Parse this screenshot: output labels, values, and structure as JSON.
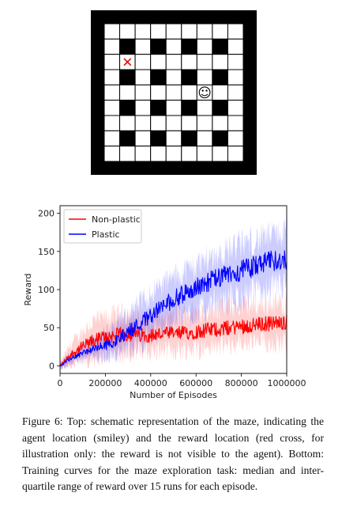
{
  "maze": {
    "rows": 9,
    "cols": 9,
    "reward_marker": {
      "symbol": "✕",
      "row": 2,
      "col": 1,
      "color": "#e01010"
    },
    "agent_marker": {
      "symbol": "☺",
      "row": 4,
      "col": 6
    }
  },
  "chart_data": {
    "type": "line",
    "xlabel": "Number of Episodes",
    "ylabel": "Reward",
    "xlim": [
      0,
      1000000
    ],
    "ylim": [
      -10,
      210
    ],
    "xticks": [
      "0",
      "200000",
      "400000",
      "600000",
      "800000",
      "1000000"
    ],
    "yticks": [
      "0",
      "50",
      "100",
      "150",
      "200"
    ],
    "legend_position": "top-left",
    "grid": false,
    "series": [
      {
        "name": "Non-plastic",
        "color": "#ff0000",
        "x": [
          0,
          50000,
          100000,
          150000,
          200000,
          250000,
          300000,
          350000,
          400000,
          450000,
          500000,
          550000,
          600000,
          650000,
          700000,
          750000,
          800000,
          850000,
          900000,
          950000,
          1000000
        ],
        "median": [
          0,
          15,
          25,
          33,
          38,
          40,
          42,
          40,
          40,
          42,
          42,
          43,
          45,
          47,
          48,
          50,
          52,
          53,
          55,
          56,
          58
        ],
        "q1": [
          -3,
          5,
          12,
          18,
          22,
          24,
          25,
          24,
          24,
          26,
          27,
          28,
          29,
          31,
          32,
          34,
          35,
          36,
          37,
          37,
          38
        ],
        "q3": [
          3,
          25,
          40,
          52,
          57,
          60,
          62,
          58,
          58,
          60,
          62,
          63,
          65,
          67,
          68,
          70,
          72,
          72,
          74,
          74,
          76
        ]
      },
      {
        "name": "Plastic",
        "color": "#0000ff",
        "x": [
          0,
          50000,
          100000,
          150000,
          200000,
          250000,
          300000,
          350000,
          400000,
          450000,
          500000,
          550000,
          600000,
          650000,
          700000,
          750000,
          800000,
          850000,
          900000,
          950000,
          1000000
        ],
        "median": [
          0,
          10,
          17,
          22,
          27,
          33,
          45,
          55,
          67,
          77,
          87,
          95,
          102,
          110,
          115,
          120,
          125,
          130,
          135,
          138,
          140
        ],
        "q1": [
          -3,
          5,
          10,
          13,
          16,
          20,
          28,
          36,
          46,
          55,
          65,
          72,
          78,
          85,
          90,
          95,
          100,
          104,
          108,
          112,
          115
        ],
        "q3": [
          3,
          15,
          24,
          32,
          40,
          48,
          62,
          74,
          88,
          98,
          108,
          116,
          124,
          132,
          138,
          144,
          150,
          154,
          158,
          162,
          166
        ]
      }
    ]
  },
  "caption": {
    "text": "Figure 6: Top: schematic representation of the maze, indicating the agent location (smiley) and the reward location (red cross, for illustration only: the reward is not visible to the agent). Bottom: Training curves for the maze exploration task: median and inter-quartile range of reward over 15 runs for each episode."
  }
}
